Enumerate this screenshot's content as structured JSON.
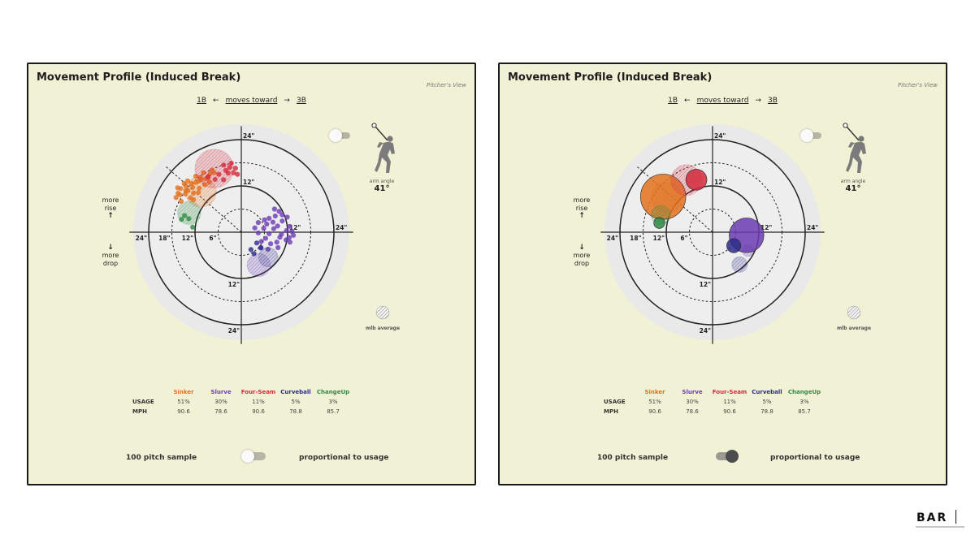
{
  "colors": {
    "Sinker": "#e2711d",
    "Slurve": "#6a3bb3",
    "Four-Seam": "#d42a3c",
    "Curveball": "#2c2b8c",
    "ChangeUp": "#2f8a44",
    "panel_bg": "#f1f1d6",
    "outer_ring": "#e9e9e9",
    "inner_ring": "#eeeeee"
  },
  "panels": [
    {
      "title": "Movement Profile (Induced Break)",
      "view_label": "Pitcher's View",
      "direction": {
        "left": "1B",
        "middle": "moves toward",
        "right": "3B"
      },
      "rise_label": [
        "more",
        "rise"
      ],
      "drop_label": [
        "more",
        "drop"
      ],
      "arm_angle_label": "arm angle",
      "arm_angle_value": "41°",
      "mlb_average_label": "mlb average",
      "top_toggle": "off",
      "bottom_toggle": {
        "left_label": "100 pitch sample",
        "right_label": "proportional to usage",
        "state": "off"
      },
      "table": {
        "headers": [
          "Sinker",
          "Slurve",
          "Four-Seam",
          "Curveball",
          "ChangeUp"
        ],
        "usage_label": "USAGE",
        "mph_label": "MPH",
        "usage": [
          "51%",
          "30%",
          "11%",
          "5%",
          "3%"
        ],
        "mph": [
          "90.6",
          "78.6",
          "90.6",
          "78.8",
          "85.7"
        ]
      },
      "chart_data": {
        "type": "scatter",
        "mode": "sample",
        "ring_labels": [
          "6\"",
          "12\"",
          "18\"",
          "24\""
        ],
        "rings": [
          6,
          12,
          18,
          24
        ],
        "xlim": [
          -30,
          30
        ],
        "ylim": [
          -30,
          30
        ],
        "arm_angle_deg": 41,
        "series": [
          {
            "name": "Sinker",
            "points": [
              [
                -16.5,
                11.5
              ],
              [
                -15.7,
                11.3
              ],
              [
                -14.4,
                12.0
              ],
              [
                -13.8,
                10.8
              ],
              [
                -12.6,
                11.6
              ],
              [
                -11.8,
                12.9
              ],
              [
                -11.1,
                13.2
              ],
              [
                -10.3,
                13.7
              ],
              [
                -9.8,
                15.4
              ],
              [
                -8.6,
                14.5
              ],
              [
                -7.6,
                16.1
              ],
              [
                -7.0,
                15.4
              ],
              [
                -15.9,
                9.7
              ],
              [
                -14.5,
                9.9
              ],
              [
                -13.2,
                8.9
              ],
              [
                -12.4,
                10.1
              ],
              [
                -10.9,
                11.4
              ],
              [
                -9.5,
                12.3
              ],
              [
                -9.1,
                13.9
              ],
              [
                -15.6,
                8.0
              ],
              [
                -14.4,
                10.8
              ],
              [
                -11.8,
                14.5
              ],
              [
                -10.8,
                14.2
              ],
              [
                -16.4,
                10.1
              ],
              [
                -12.9,
                12.6
              ],
              [
                -13.9,
                13.3
              ],
              [
                -11.1,
                10.3
              ],
              [
                -8.3,
                13.0
              ],
              [
                -16.9,
                9.0
              ],
              [
                -14.8,
                12.6
              ],
              [
                -12.4,
                8.4
              ],
              [
                -8.1,
                15.1
              ]
            ],
            "mlb_average": {
              "x": -10.5,
              "y": 10.5,
              "r": 4.0
            }
          },
          {
            "name": "Slurve",
            "points": [
              [
                3.5,
                1.1
              ],
              [
                4.4,
                -0.2
              ],
              [
                5.8,
                1.0
              ],
              [
                6.6,
                2.1
              ],
              [
                7.2,
                -0.4
              ],
              [
                8.4,
                0.9
              ],
              [
                9.4,
                1.6
              ],
              [
                10.4,
                -0.5
              ],
              [
                11.7,
                0.4
              ],
              [
                12.4,
                -1.4
              ],
              [
                11.6,
                -2.0
              ],
              [
                10.0,
                -1.3
              ],
              [
                9.2,
                -2.6
              ],
              [
                8.2,
                2.6
              ],
              [
                7.2,
                3.6
              ],
              [
                6.3,
                -1.6
              ],
              [
                5.2,
                -2.4
              ],
              [
                10.6,
                2.9
              ],
              [
                12.5,
                1.5
              ],
              [
                13.5,
                -0.8
              ],
              [
                8.8,
                4.2
              ],
              [
                7.6,
                -3.0
              ],
              [
                6.0,
                3.2
              ],
              [
                4.4,
                2.5
              ],
              [
                11.9,
                3.9
              ],
              [
                9.8,
                5.4
              ],
              [
                8.6,
                6.0
              ],
              [
                10.6,
                4.5
              ],
              [
                13.1,
                0.2
              ],
              [
                12.6,
                -2.6
              ],
              [
                5.0,
                -4.1
              ],
              [
                6.9,
                -4.4
              ],
              [
                9.5,
                -4.0
              ]
            ],
            "mlb_average": {
              "x": 4.5,
              "y": -8.5,
              "r": 3.0
            }
          },
          {
            "name": "Four-Seam",
            "points": [
              [
                -4.0,
                16.0
              ],
              [
                -3.0,
                16.8
              ],
              [
                -2.0,
                15.4
              ],
              [
                -1.0,
                15.0
              ],
              [
                -4.6,
                17.4
              ],
              [
                -2.6,
                17.9
              ],
              [
                -5.8,
                15.0
              ],
              [
                -1.5,
                16.6
              ],
              [
                -4.6,
                13.6
              ],
              [
                -6.8,
                13.7
              ],
              [
                -3.4,
                15.3
              ],
              [
                -8.6,
                14.3
              ]
            ],
            "mlb_average": {
              "x": -7.0,
              "y": 16.5,
              "r": 5.0
            }
          },
          {
            "name": "Curveball",
            "points": [
              [
                4.0,
                -2.8
              ],
              [
                2.5,
                -4.5
              ],
              [
                5.1,
                -4.0
              ],
              [
                3.3,
                -5.6
              ]
            ],
            "mlb_average": {
              "x": 7.0,
              "y": -6.5,
              "r": 2.5
            }
          },
          {
            "name": "ChangeUp",
            "points": [
              [
                -14.7,
                4.3
              ],
              [
                -13.6,
                3.5
              ],
              [
                -12.6,
                1.3
              ],
              [
                -15.5,
                3.3
              ]
            ],
            "mlb_average": {
              "x": -13.5,
              "y": 5.0,
              "r": 3.0
            }
          }
        ]
      }
    },
    {
      "title": "Movement Profile (Induced Break)",
      "view_label": "Pitcher's View",
      "direction": {
        "left": "1B",
        "middle": "moves toward",
        "right": "3B"
      },
      "rise_label": [
        "more",
        "rise"
      ],
      "drop_label": [
        "more",
        "drop"
      ],
      "arm_angle_label": "arm angle",
      "arm_angle_value": "41°",
      "mlb_average_label": "mlb average",
      "top_toggle": "off",
      "bottom_toggle": {
        "left_label": "100 pitch sample",
        "right_label": "proportional to usage",
        "state": "on"
      },
      "table": {
        "headers": [
          "Sinker",
          "Slurve",
          "Four-Seam",
          "Curveball",
          "ChangeUp"
        ],
        "usage_label": "USAGE",
        "mph_label": "MPH",
        "usage": [
          "51%",
          "30%",
          "11%",
          "5%",
          "3%"
        ],
        "mph": [
          "90.6",
          "78.6",
          "90.6",
          "78.8",
          "85.7"
        ]
      },
      "chart_data": {
        "type": "scatter",
        "mode": "proportional",
        "ring_labels": [
          "6\"",
          "12\"",
          "18\"",
          "24\""
        ],
        "rings": [
          6,
          12,
          18,
          24
        ],
        "xlim": [
          -30,
          30
        ],
        "ylim": [
          -30,
          30
        ],
        "arm_angle_deg": 41,
        "series": [
          {
            "name": "Sinker",
            "x": -12.8,
            "y": 9.2,
            "usage": 51,
            "mlb_average": {
              "x": -12.0,
              "y": 9.0,
              "r": 4.0
            }
          },
          {
            "name": "Slurve",
            "x": 8.8,
            "y": -0.8,
            "usage": 30,
            "mlb_average": {
              "x": 9.2,
              "y": -4.8,
              "r": 1.5
            }
          },
          {
            "name": "Four-Seam",
            "x": -4.2,
            "y": 13.6,
            "usage": 11,
            "mlb_average": {
              "x": -6.8,
              "y": 13.5,
              "r": 4.0
            }
          },
          {
            "name": "Curveball",
            "x": 5.5,
            "y": -3.5,
            "usage": 5,
            "mlb_average": {
              "x": 7.0,
              "y": -8.4,
              "r": 2.0
            }
          },
          {
            "name": "ChangeUp",
            "x": -13.8,
            "y": 2.4,
            "usage": 3,
            "mlb_average": {
              "x": -13.4,
              "y": 4.5,
              "r": 2.5
            }
          }
        ]
      }
    }
  ],
  "logo": "BAR"
}
